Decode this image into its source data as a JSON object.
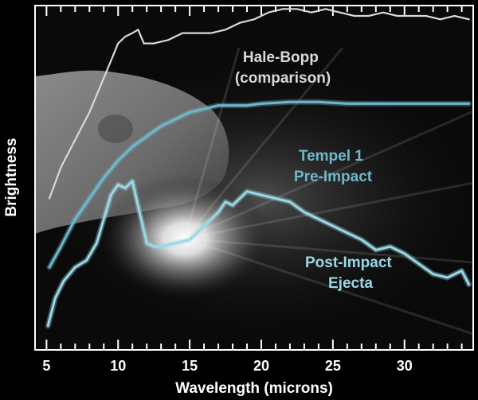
{
  "chart_data": {
    "type": "line",
    "title": "",
    "xlabel": "Wavelength (microns)",
    "ylabel": "Brightness",
    "xlim": [
      4.2,
      34.8
    ],
    "ylim": [
      0,
      1
    ],
    "xticks": [
      5,
      10,
      15,
      20,
      25,
      30
    ],
    "xticklabels": [
      "5",
      "10",
      "15",
      "20",
      "25",
      "30"
    ],
    "grid": false,
    "background": "Deep Impact photograph of comet Tempel 1 nucleus and ejecta flash",
    "series": [
      {
        "name": "Hale-Bopp (comparison)",
        "label_lines": [
          "Hale-Bopp",
          "(comparison)"
        ],
        "color": "#d9d9d9",
        "x": [
          5.2,
          6,
          7,
          8,
          8.5,
          9,
          9.5,
          10,
          10.5,
          11,
          11.4,
          11.8,
          12.5,
          13.5,
          14.5,
          15.5,
          16.5,
          17.5,
          18.5,
          19.5,
          20.5,
          21.5,
          22.5,
          23.5,
          24.5,
          25.5,
          26.5,
          27.5,
          28.5,
          29.5,
          30.5,
          31.5,
          32.5,
          33.5,
          34.5
        ],
        "y": [
          0.44,
          0.53,
          0.61,
          0.69,
          0.74,
          0.79,
          0.84,
          0.89,
          0.91,
          0.92,
          0.93,
          0.89,
          0.89,
          0.9,
          0.92,
          0.92,
          0.92,
          0.93,
          0.95,
          0.96,
          0.98,
          0.99,
          0.99,
          0.98,
          0.99,
          0.98,
          0.97,
          0.97,
          0.98,
          0.97,
          0.97,
          0.97,
          0.96,
          0.97,
          0.96
        ]
      },
      {
        "name": "Tempel 1 Pre-Impact",
        "label_lines": [
          "Tempel 1",
          "Pre-Impact"
        ],
        "color": "#6fb8cc",
        "x": [
          5.2,
          6,
          7,
          8,
          9,
          10,
          11,
          12,
          13,
          14,
          15,
          16,
          17,
          18,
          19,
          20,
          22,
          24,
          26,
          28,
          30,
          32,
          34.5
        ],
        "y": [
          0.24,
          0.3,
          0.38,
          0.44,
          0.5,
          0.55,
          0.59,
          0.62,
          0.65,
          0.67,
          0.69,
          0.7,
          0.71,
          0.71,
          0.71,
          0.715,
          0.72,
          0.72,
          0.715,
          0.715,
          0.715,
          0.715,
          0.715
        ]
      },
      {
        "name": "Post-Impact Ejecta",
        "label_lines": [
          "Post-Impact",
          "Ejecta"
        ],
        "color": "#9ad8e6",
        "x": [
          5.1,
          5.6,
          6.2,
          7,
          7.8,
          8.5,
          9,
          9.5,
          10,
          10.5,
          11,
          11.5,
          12,
          12.5,
          13,
          14,
          15,
          16,
          17,
          17.5,
          18,
          19,
          20,
          21,
          22,
          23,
          24,
          25,
          26,
          27,
          28,
          29,
          30,
          31,
          32,
          33,
          34,
          34.5
        ],
        "y": [
          0.07,
          0.15,
          0.2,
          0.24,
          0.26,
          0.31,
          0.38,
          0.45,
          0.48,
          0.47,
          0.49,
          0.4,
          0.31,
          0.3,
          0.3,
          0.31,
          0.32,
          0.36,
          0.4,
          0.43,
          0.42,
          0.46,
          0.45,
          0.44,
          0.43,
          0.4,
          0.38,
          0.36,
          0.34,
          0.32,
          0.29,
          0.3,
          0.28,
          0.25,
          0.22,
          0.21,
          0.23,
          0.19
        ]
      }
    ]
  }
}
